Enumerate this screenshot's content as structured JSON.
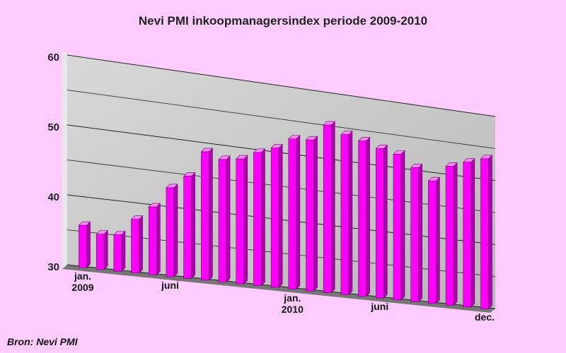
{
  "chart_data": {
    "type": "bar3d",
    "title": "Nevi PMI inkoopmanagersindex periode 2009-2010",
    "categories": [
      "jan.\n2009",
      null,
      null,
      null,
      null,
      "juni",
      null,
      null,
      null,
      null,
      null,
      null,
      "jan.\n2010",
      null,
      null,
      null,
      null,
      "juni",
      null,
      null,
      null,
      null,
      null,
      "dec."
    ],
    "values": [
      36.1,
      35.1,
      35.3,
      37.8,
      39.9,
      43.0,
      45.0,
      48.9,
      48.1,
      48.5,
      49.8,
      50.8,
      52.5,
      52.7,
      55.3,
      54.2,
      53.6,
      52.8,
      52.3,
      50.6,
      48.9,
      51.5,
      52.5,
      53.4
    ],
    "color": "#ff00ff",
    "ylim": [
      30,
      60
    ],
    "yticks": [
      30,
      40,
      50,
      60
    ],
    "minor_grid": [
      35,
      45,
      55
    ],
    "grid": true,
    "source": "Bron: Nevi PMI"
  }
}
